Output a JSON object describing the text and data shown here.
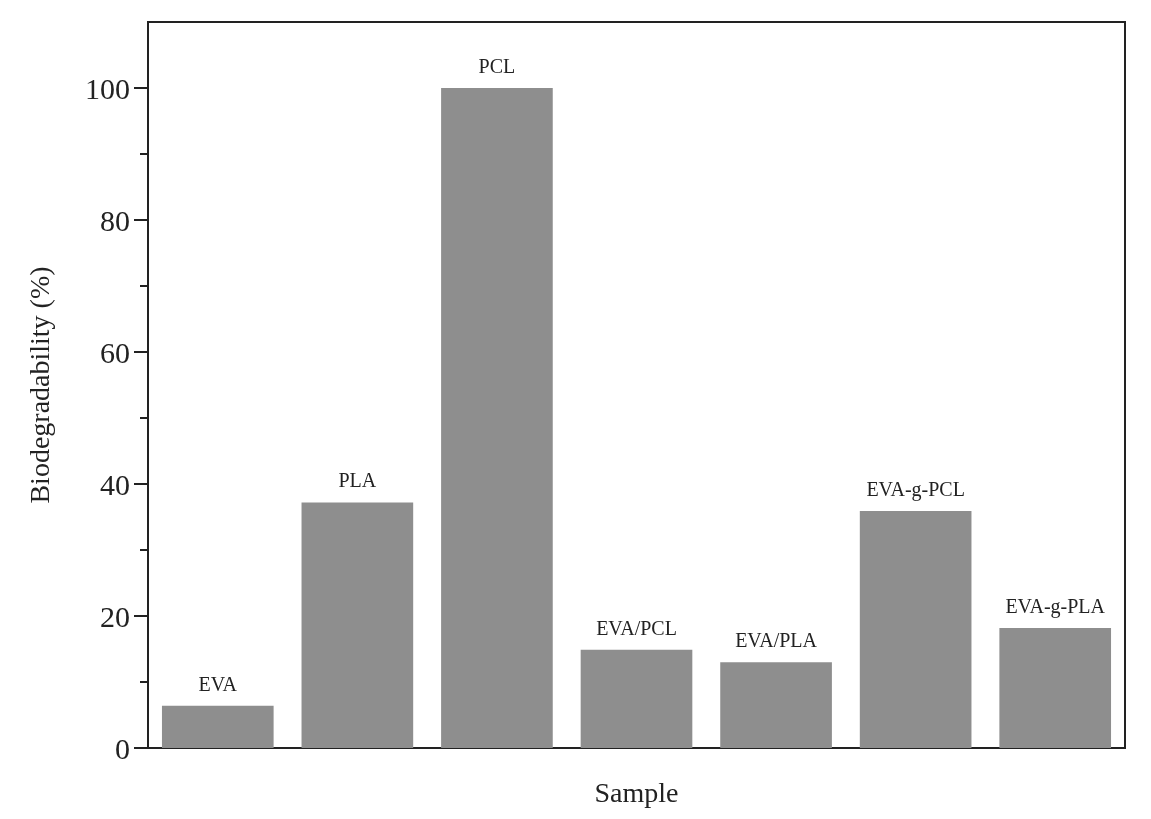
{
  "chart_data": {
    "type": "bar",
    "xlabel": "Sample",
    "ylabel": "Biodegradability (%)",
    "categories": [
      "EVA",
      "PLA",
      "PCL",
      "EVA/PCL",
      "EVA/PLA",
      "EVA-g-PCL",
      "EVA-g-PLA"
    ],
    "values": [
      6.4,
      37.2,
      100,
      14.9,
      13.0,
      35.9,
      18.2
    ],
    "color": "#8e8e8e",
    "ylim": [
      0,
      110
    ],
    "yticks": [
      0,
      20,
      40,
      60,
      80,
      100
    ],
    "tick_labels": "y",
    "grid": false
  }
}
